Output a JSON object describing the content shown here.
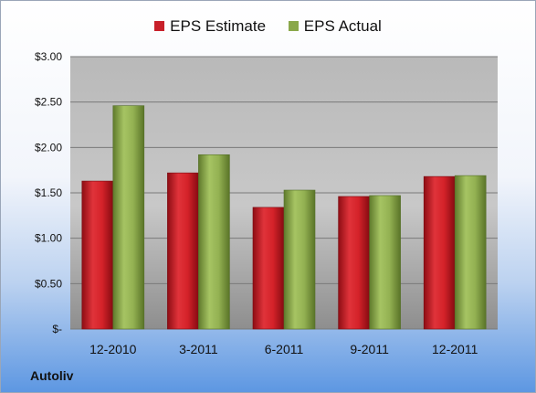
{
  "company": "Autoliv",
  "colors": {
    "estimate": "#c8202a",
    "actual": "#8aa84a"
  },
  "chart_data": {
    "type": "bar",
    "title": "",
    "xlabel": "",
    "ylabel": "",
    "categories": [
      "12-2010",
      "3-2011",
      "6-2011",
      "9-2011",
      "12-2011"
    ],
    "series": [
      {
        "name": "EPS Estimate",
        "values": [
          1.63,
          1.72,
          1.34,
          1.46,
          1.68
        ]
      },
      {
        "name": "EPS Actual",
        "values": [
          2.46,
          1.92,
          1.53,
          1.47,
          1.69
        ]
      }
    ],
    "ylim": [
      0,
      3.0
    ],
    "yticks": [
      0,
      0.5,
      1.0,
      1.5,
      2.0,
      2.5,
      3.0
    ],
    "ytick_labels": [
      "$-",
      "$0.50",
      "$1.00",
      "$1.50",
      "$2.00",
      "$2.50",
      "$3.00"
    ],
    "grid": true,
    "legend_position": "top"
  }
}
